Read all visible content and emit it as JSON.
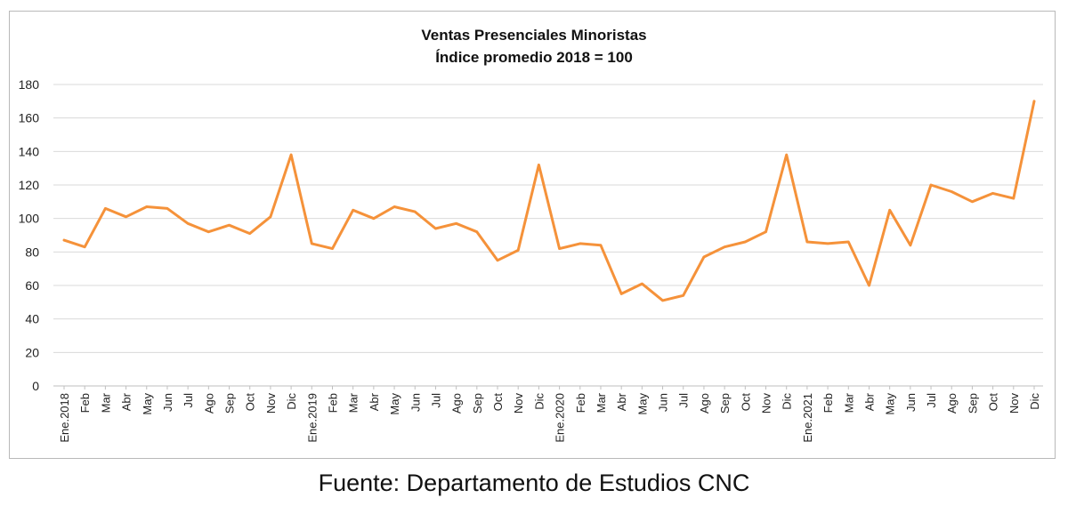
{
  "chart_data": {
    "type": "line",
    "title": "Ventas Presenciales Minoristas",
    "subtitle": "Índice promedio 2018 = 100",
    "xlabel": "",
    "ylabel": "",
    "ylim": [
      0,
      180
    ],
    "yticks": [
      0,
      20,
      40,
      60,
      80,
      100,
      120,
      140,
      160,
      180
    ],
    "grid": true,
    "legend": "none",
    "categories": [
      "Ene.2018",
      "Feb",
      "Mar",
      "Abr",
      "May",
      "Jun",
      "Jul",
      "Ago",
      "Sep",
      "Oct",
      "Nov",
      "Dic",
      "Ene.2019",
      "Feb",
      "Mar",
      "Abr",
      "May",
      "Jun",
      "Jul",
      "Ago",
      "Sep",
      "Oct",
      "Nov",
      "Dic",
      "Ene.2020",
      "Feb",
      "Mar",
      "Abr",
      "May",
      "Jun",
      "Jul",
      "Ago",
      "Sep",
      "Oct",
      "Nov",
      "Dic",
      "Ene.2021",
      "Feb",
      "Mar",
      "Abr",
      "May",
      "Jun",
      "Jul",
      "Ago",
      "Sep",
      "Oct",
      "Nov",
      "Dic"
    ],
    "series": [
      {
        "values": [
          87,
          83,
          106,
          101,
          107,
          106,
          97,
          92,
          96,
          91,
          101,
          138,
          85,
          82,
          105,
          100,
          107,
          104,
          94,
          97,
          92,
          75,
          81,
          132,
          82,
          85,
          84,
          55,
          61,
          51,
          54,
          77,
          83,
          86,
          92,
          138,
          86,
          85,
          86,
          60,
          105,
          84,
          120,
          116,
          110,
          115,
          112,
          170
        ],
        "color": "#f5923a"
      }
    ]
  },
  "source": "Fuente: Departamento de Estudios CNC"
}
